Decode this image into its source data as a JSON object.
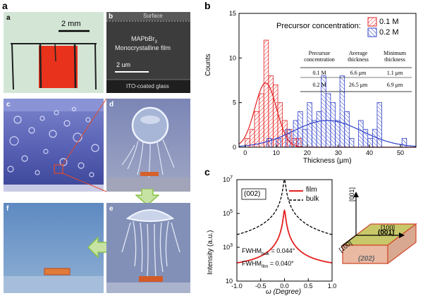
{
  "panel_a": {
    "label": "a",
    "sub_a": {
      "label": "a",
      "scale_text": "2 mm"
    },
    "sub_b": {
      "label": "b",
      "surface": "Surface",
      "film_line1": "MAPbBr",
      "film_sub": "3",
      "film_line2": "Monocrystalline film",
      "scale_text": "2 um",
      "substrate": "ITO-coated glass"
    },
    "sub_c": {
      "label": "c"
    },
    "sub_d": {
      "label": "d"
    },
    "sub_e": {
      "label": "e"
    },
    "sub_f": {
      "label": "f"
    }
  },
  "panel_b": {
    "label": "b",
    "legend_title": "Precursor concentration:",
    "legend_items": [
      "0.1 M",
      "0.2 M"
    ],
    "table": {
      "headers": [
        "Precursor concentration",
        "Average thickness",
        "Minimum thickness"
      ],
      "rows": [
        [
          "0.1 M",
          "6.6 μm",
          "1.1 μm"
        ],
        [
          "0.2 M",
          "26.5 μm",
          "6.9 μm"
        ]
      ]
    }
  },
  "panel_c": {
    "label": "c",
    "annotation": "(002)",
    "legend": [
      "film",
      "bulk"
    ],
    "fwhm_bulk_main": "FWHM",
    "fwhm_bulk_sub": "bulk",
    "fwhm_bulk_value": " = 0.044°",
    "fwhm_film_main": "FWHM",
    "fwhm_film_sub": "film",
    "fwhm_film_value": " = 0.040°",
    "crystal": {
      "axis_001": "[001]",
      "axis_100a": "[100]",
      "axis_100b": "[100]",
      "face_top": "(001)",
      "face_side": "(202)"
    }
  },
  "colors": {
    "red": "#e32020",
    "blue": "#3040c8",
    "crystal_top": "#c8c86a",
    "crystal_side": "#e9b9a2"
  },
  "chart_data": [
    {
      "type": "bar",
      "panel": "b",
      "xlabel": "Thickness (μm)",
      "ylabel": "Counts",
      "xlim": [
        -2,
        55
      ],
      "ylim": [
        0,
        15
      ],
      "xticks": [
        0,
        10,
        20,
        30,
        40,
        50
      ],
      "yticks": [
        0,
        5,
        10,
        15
      ],
      "bin_width": 1.5,
      "series": [
        {
          "name": "0.1 M",
          "pattern": "hatched-red",
          "bins": [
            [
              0,
              1
            ],
            [
              1.5,
              2
            ],
            [
              3,
              4
            ],
            [
              4.5,
              6
            ],
            [
              6,
              12
            ],
            [
              7.5,
              8
            ],
            [
              9,
              7
            ],
            [
              10.5,
              5
            ],
            [
              12,
              3
            ],
            [
              13.5,
              2
            ],
            [
              15,
              1
            ],
            [
              16.5,
              1
            ]
          ],
          "fit": {
            "mean": 6.6,
            "sd": 3.5,
            "peak": 7.2
          }
        },
        {
          "name": "0.2 M",
          "pattern": "hatched-blue",
          "bins": [
            [
              7,
              1
            ],
            [
              10,
              1
            ],
            [
              13,
              2
            ],
            [
              15.5,
              3
            ],
            [
              17,
              4
            ],
            [
              18.5,
              2
            ],
            [
              20,
              5
            ],
            [
              21.5,
              3
            ],
            [
              23,
              4
            ],
            [
              24.5,
              8
            ],
            [
              26,
              6
            ],
            [
              27.5,
              5
            ],
            [
              29,
              3
            ],
            [
              30.5,
              8
            ],
            [
              32,
              4
            ],
            [
              33.5,
              1
            ],
            [
              36.5,
              3
            ],
            [
              38,
              2
            ],
            [
              39.5,
              1
            ],
            [
              41,
              2
            ],
            [
              42.5,
              5
            ],
            [
              50.5,
              1
            ]
          ],
          "fit": {
            "mean": 26.5,
            "sd": 11,
            "peak": 3
          }
        }
      ]
    },
    {
      "type": "line",
      "panel": "c",
      "xlabel": "ω (Degree)",
      "ylabel": "Intensity (a.u.)",
      "xlim": [
        -1.0,
        1.0
      ],
      "ylim_log": [
        10,
        10000000
      ],
      "xticks": [
        -1.0,
        -0.5,
        0.0,
        0.5,
        1.0
      ],
      "yticks": [
        "10",
        "10^3",
        "10^5",
        "10^7"
      ],
      "series": [
        {
          "name": "film",
          "style": "solid-red",
          "peak": 150000,
          "hwhm": 0.02,
          "base": 60
        },
        {
          "name": "bulk",
          "style": "dashed-black",
          "peak": 10000000,
          "hwhm": 0.022,
          "base": 800
        }
      ]
    }
  ]
}
